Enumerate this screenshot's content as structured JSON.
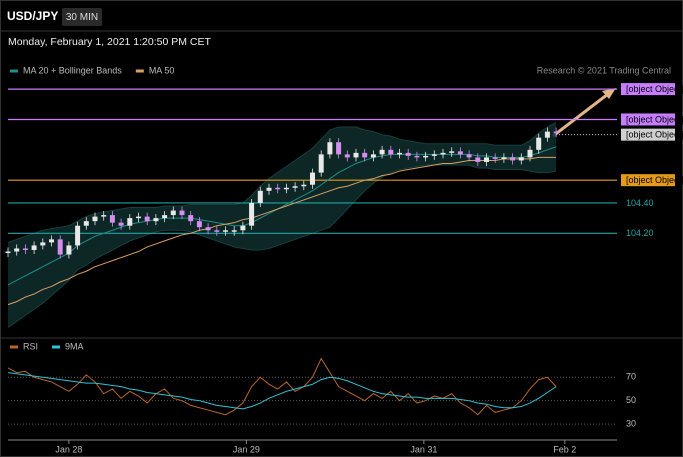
{
  "header": {
    "symbol": "USD/JPY",
    "interval": "30 MIN",
    "timestamp": "Monday, February 1, 2021 1:20:50 PM CET",
    "credit": "Research © 2021 Trading Central"
  },
  "chart_data": [
    {
      "type": "candlestick",
      "xlim": [
        0,
        70
      ],
      "ylim": [
        103.53,
        105.21
      ],
      "up_color": "#e8e8e8",
      "down_color": "#d48ef0",
      "values": [
        104.08,
        104.1,
        104.09,
        104.12,
        104.14,
        104.16,
        104.06,
        104.12,
        104.25,
        104.28,
        104.31,
        104.32,
        104.27,
        104.25,
        104.3,
        104.31,
        104.28,
        104.3,
        104.32,
        104.35,
        104.32,
        104.28,
        104.24,
        104.22,
        104.21,
        104.22,
        104.22,
        104.25,
        104.4,
        104.48,
        104.5,
        104.49,
        104.5,
        104.51,
        104.52,
        104.6,
        104.72,
        104.8,
        104.72,
        104.7,
        104.73,
        104.7,
        104.72,
        104.75,
        104.72,
        104.73,
        104.71,
        104.7,
        104.71,
        104.72,
        104.73,
        104.74,
        104.72,
        104.7,
        104.67,
        104.7,
        104.69,
        104.7,
        104.68,
        104.7,
        104.75,
        104.83,
        104.87,
        104.86
      ],
      "series": [
        {
          "name": "MA 20 + Bollinger Bands",
          "color": "#1d8f8a",
          "values": [
            103.86,
            103.89,
            103.92,
            103.95,
            103.98,
            104.01,
            104.04,
            104.07,
            104.12,
            104.15,
            104.18,
            104.2,
            104.22,
            104.24,
            104.26,
            104.27,
            104.28,
            104.29,
            104.3,
            104.3,
            104.3,
            104.3,
            104.29,
            104.28,
            104.27,
            104.26,
            104.25,
            104.25,
            104.27,
            104.3,
            104.33,
            104.36,
            104.39,
            104.42,
            104.45,
            104.48,
            104.52,
            104.56,
            104.6,
            104.63,
            104.66,
            104.68,
            104.7,
            104.71,
            104.72,
            104.72,
            104.72,
            104.72,
            104.72,
            104.72,
            104.72,
            104.72,
            104.72,
            104.72,
            104.71,
            104.71,
            104.7,
            104.7,
            104.7,
            104.7,
            104.71,
            104.73,
            104.75,
            104.77
          ],
          "upper": [
            104.14,
            104.16,
            104.18,
            104.2,
            104.22,
            104.23,
            104.24,
            104.25,
            104.28,
            104.31,
            104.33,
            104.34,
            104.35,
            104.36,
            104.37,
            104.37,
            104.37,
            104.37,
            104.38,
            104.38,
            104.38,
            104.39,
            104.39,
            104.39,
            104.39,
            104.39,
            104.39,
            104.4,
            104.45,
            104.51,
            104.56,
            104.6,
            104.64,
            104.68,
            104.72,
            104.76,
            104.82,
            104.88,
            104.9,
            104.9,
            104.9,
            104.88,
            104.87,
            104.85,
            104.84,
            104.82,
            104.81,
            104.8,
            104.79,
            104.79,
            104.79,
            104.79,
            104.79,
            104.79,
            104.79,
            104.79,
            104.78,
            104.78,
            104.78,
            104.78,
            104.81,
            104.86,
            104.9,
            104.93
          ],
          "lower": [
            103.58,
            103.62,
            103.66,
            103.7,
            103.74,
            103.79,
            103.84,
            103.89,
            103.96,
            103.99,
            104.03,
            104.06,
            104.09,
            104.12,
            104.15,
            104.17,
            104.19,
            104.21,
            104.22,
            104.22,
            104.22,
            104.21,
            104.19,
            104.17,
            104.15,
            104.13,
            104.11,
            104.1,
            104.09,
            104.09,
            104.1,
            104.12,
            104.14,
            104.16,
            104.18,
            104.2,
            104.22,
            104.24,
            104.3,
            104.36,
            104.42,
            104.48,
            104.53,
            104.57,
            104.6,
            104.62,
            104.63,
            104.64,
            104.65,
            104.65,
            104.65,
            104.65,
            104.65,
            104.65,
            104.63,
            104.63,
            104.62,
            104.62,
            104.62,
            104.62,
            104.61,
            104.6,
            104.6,
            104.61
          ]
        },
        {
          "name": "MA 50",
          "color": "#d9a066",
          "values": [
            103.73,
            103.75,
            103.78,
            103.8,
            103.83,
            103.85,
            103.88,
            103.9,
            103.93,
            103.95,
            103.98,
            104.0,
            104.02,
            104.04,
            104.06,
            104.08,
            104.11,
            104.13,
            104.15,
            104.17,
            104.19,
            104.2,
            104.22,
            104.23,
            104.25,
            104.26,
            104.27,
            104.29,
            104.3,
            104.32,
            104.34,
            104.36,
            104.38,
            104.4,
            104.42,
            104.44,
            104.46,
            104.48,
            104.5,
            104.51,
            104.53,
            104.55,
            104.56,
            104.58,
            104.59,
            104.61,
            104.62,
            104.63,
            104.64,
            104.65,
            104.66,
            104.66,
            104.67,
            104.68,
            104.68,
            104.68,
            104.68,
            104.69,
            104.69,
            104.69,
            104.69,
            104.7,
            104.7,
            104.7
          ]
        }
      ],
      "levels": [
        {
          "value": 105.15,
          "color": "#c77dff",
          "box": true,
          "dashed": false
        },
        {
          "value": 104.95,
          "color": "#c77dff",
          "box": true,
          "dashed": false
        },
        {
          "value": 104.85,
          "color": "#d0d0d0",
          "box": true,
          "dashed": true
        },
        {
          "value": 104.55,
          "color": "#e59a1a",
          "box": true,
          "dashed": false
        },
        {
          "value": 104.4,
          "label": "104.40",
          "color": "#1fa5a5",
          "box": false,
          "dashed": false
        },
        {
          "value": 104.2,
          "label": "104.20",
          "color": "#1fa5a5",
          "box": false,
          "dashed": false
        }
      ]
    },
    {
      "type": "line",
      "xlim": [
        0,
        70
      ],
      "ylim": [
        19,
        89
      ],
      "yticks": [
        70,
        50,
        30
      ],
      "xticks": [
        {
          "value": 7,
          "label": "Jan 28"
        },
        {
          "value": 27.4,
          "label": "Jan 29"
        },
        {
          "value": 47.8,
          "label": "Jan 31"
        },
        {
          "value": 64,
          "label": "Feb 2"
        }
      ],
      "series": [
        {
          "name": "RSI",
          "color": "#b8662a",
          "values": [
            78,
            74,
            75,
            70,
            68,
            66,
            62,
            58,
            64,
            72,
            66,
            56,
            60,
            52,
            58,
            54,
            48,
            56,
            60,
            52,
            50,
            46,
            44,
            42,
            40,
            38,
            42,
            48,
            62,
            70,
            64,
            60,
            66,
            58,
            62,
            70,
            86,
            74,
            62,
            58,
            54,
            50,
            56,
            52,
            58,
            50,
            56,
            48,
            50,
            54,
            52,
            56,
            48,
            44,
            38,
            46,
            40,
            42,
            44,
            50,
            60,
            68,
            70,
            62
          ]
        },
        {
          "name": "9MA",
          "color": "#2ec4d6",
          "values": [
            74,
            73,
            72,
            71,
            70,
            69,
            68,
            67,
            66,
            65,
            65,
            64,
            63,
            62,
            60,
            59,
            57,
            56,
            55,
            54,
            53,
            51,
            50,
            48,
            46,
            45,
            44,
            43,
            45,
            48,
            52,
            55,
            58,
            60,
            62,
            64,
            68,
            70,
            69,
            67,
            64,
            61,
            58,
            56,
            55,
            54,
            53,
            53,
            52,
            52,
            52,
            52,
            51,
            50,
            48,
            47,
            45,
            44,
            44,
            45,
            48,
            52,
            57,
            62
          ]
        }
      ]
    }
  ]
}
